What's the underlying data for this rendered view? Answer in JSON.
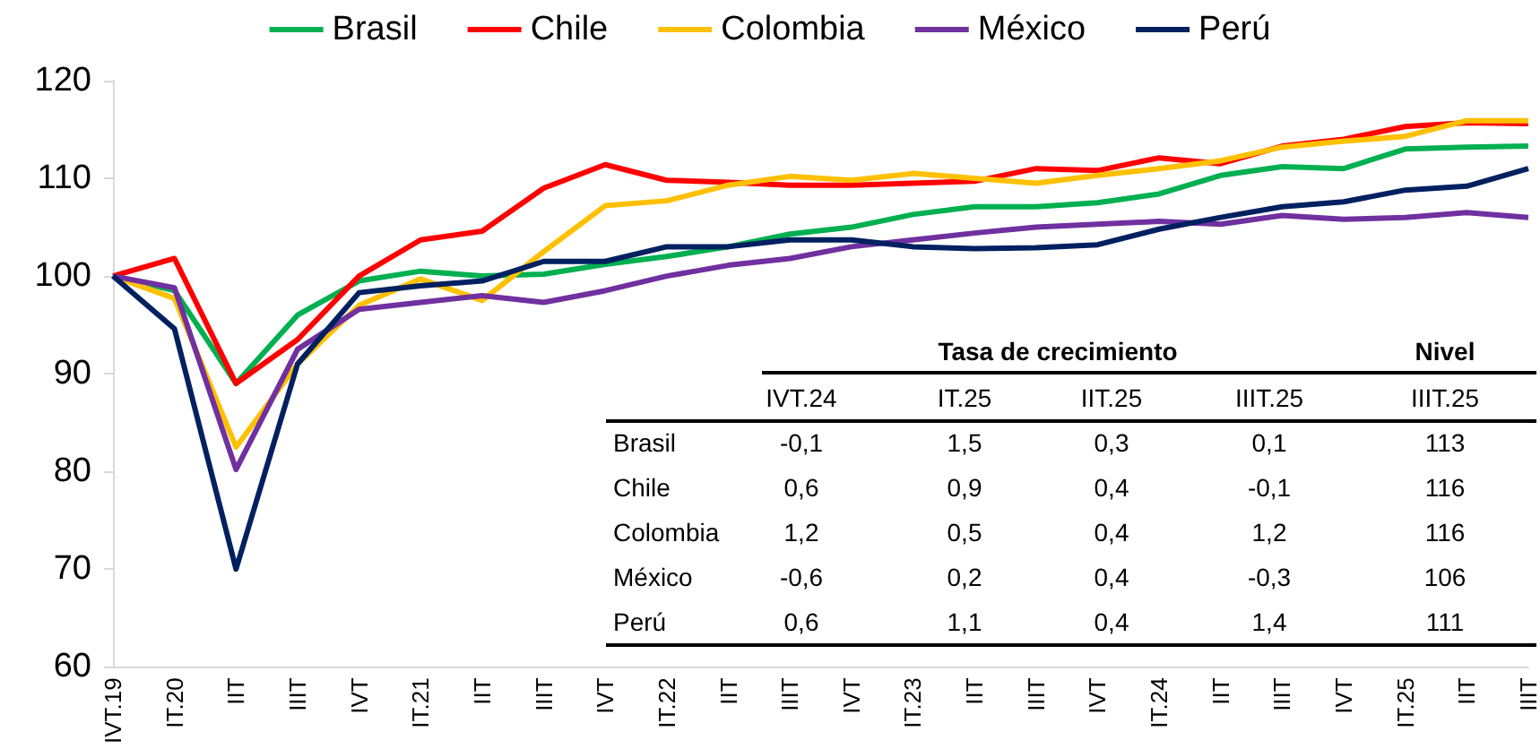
{
  "chart_data": {
    "type": "line",
    "categories": [
      "IVT.19",
      "IT.20",
      "IIT",
      "IIIT",
      "IVT",
      "IT.21",
      "IIT",
      "IIIT",
      "IVT",
      "IT.22",
      "IIT",
      "IIIT",
      "IVT",
      "IT.23",
      "IIT",
      "IIIT",
      "IVT",
      "IT.24",
      "IIT",
      "IIIT",
      "IVT",
      "IT.25",
      "IIT",
      "IIIT"
    ],
    "series": [
      {
        "name": "Brasil",
        "color": "#00b050",
        "values": [
          100,
          98.5,
          89,
          96,
          99.5,
          100.5,
          100,
          100.2,
          101.2,
          102,
          103,
          104.3,
          105,
          106.3,
          107.1,
          107.1,
          107.5,
          108.4,
          110.3,
          111.2,
          111,
          113,
          113.2,
          113.3
        ]
      },
      {
        "name": "Chile",
        "color": "#ff0000",
        "values": [
          100,
          101.8,
          89,
          93.5,
          100,
          103.7,
          104.6,
          109,
          111.4,
          109.8,
          109.6,
          109.3,
          109.3,
          109.5,
          109.7,
          111,
          110.8,
          112.1,
          111.5,
          113.3,
          114,
          115.3,
          115.7,
          115.6
        ]
      },
      {
        "name": "Colombia",
        "color": "#ffc000",
        "values": [
          100,
          97.7,
          82.5,
          91,
          97,
          99.7,
          97.5,
          102.5,
          107.2,
          107.7,
          109.3,
          110.2,
          109.8,
          110.5,
          110,
          109.5,
          110.3,
          111,
          111.8,
          113.2,
          113.8,
          114.3,
          115.9,
          115.9
        ]
      },
      {
        "name": "México",
        "color": "#7030a0",
        "values": [
          100,
          98.8,
          80.2,
          92.5,
          96.6,
          97.3,
          98,
          97.3,
          98.5,
          100,
          101.1,
          101.8,
          103,
          103.7,
          104.4,
          105,
          105.3,
          105.6,
          105.3,
          106.2,
          105.8,
          106,
          106.5,
          106
        ]
      },
      {
        "name": "Perú",
        "color": "#002060",
        "values": [
          100,
          94.6,
          70,
          91,
          98.3,
          99,
          99.5,
          101.5,
          101.5,
          103,
          103,
          103.7,
          103.7,
          103,
          102.8,
          102.9,
          103.2,
          104.8,
          106,
          107.1,
          107.6,
          108.8,
          109.2,
          111
        ]
      }
    ],
    "ylim": [
      60,
      120
    ],
    "yticks": [
      60,
      70,
      80,
      90,
      100,
      110,
      120
    ],
    "grid": false,
    "legend": "top",
    "marker": "none",
    "line_style": "solid",
    "annotations": [
      "Tasa de crecimiento",
      "Nivel",
      "IVT.24",
      "IT.25",
      "IIT.25",
      "IIIT.25",
      "IIIT.25",
      "Brasil",
      "-0,1",
      "1,5",
      "0,3",
      "0,1",
      "113",
      "Chile",
      "0,6",
      "0,9",
      "0,4",
      "-0,1",
      "116",
      "Colombia",
      "1,2",
      "0,5",
      "0,4",
      "1,2",
      "116",
      "México",
      "-0,6",
      "0,2",
      "0,4",
      "-0,3",
      "106",
      "Perú",
      "0,6",
      "1,1",
      "0,4",
      "1,4",
      "111"
    ]
  }
}
